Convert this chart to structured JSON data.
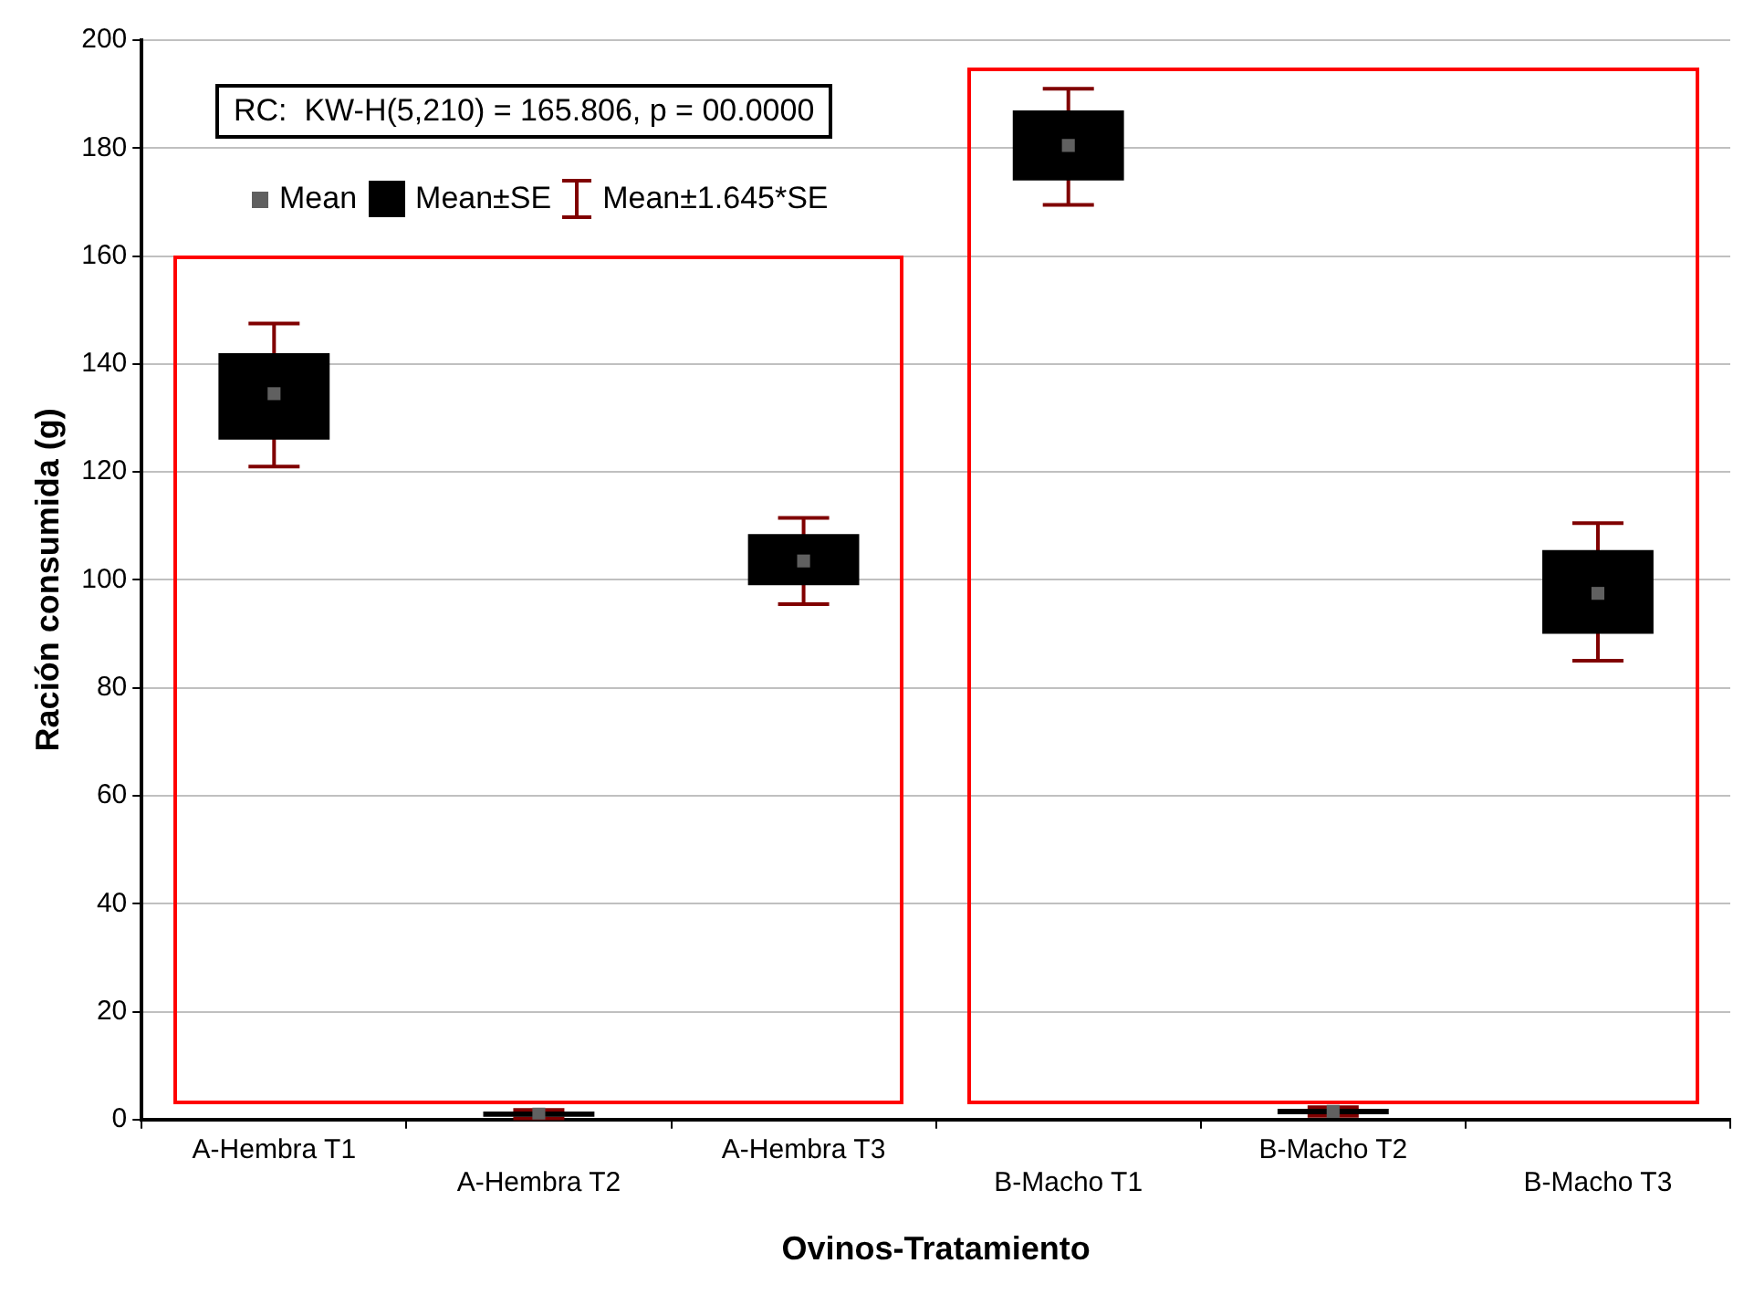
{
  "chart_data": {
    "type": "bar",
    "xlabel": "Ovinos-Tratamiento",
    "ylabel": "Ración consumida (g)",
    "categories": [
      "A-Hembra T1",
      "A-Hembra T2",
      "A-Hembra T3",
      "B-Macho T1",
      "B-Macho T2",
      "B-Macho T3"
    ],
    "series": [
      {
        "name": "Mean±SE",
        "color": "#000000",
        "base": [
          126,
          0.5,
          99,
          174,
          1,
          90
        ],
        "values": [
          16,
          1,
          9.5,
          13,
          1,
          15.5
        ]
      },
      {
        "name": "Mean",
        "type": "scatter",
        "marker": "square",
        "color": "#606060",
        "values": [
          134.5,
          1,
          103.5,
          180.5,
          1.5,
          97.5
        ],
        "errors": [
          [
            121,
            147.5
          ],
          [
            0.2,
            1.8
          ],
          [
            95.5,
            111.5
          ],
          [
            169.5,
            191
          ],
          [
            0.7,
            2.3
          ],
          [
            85,
            110.5
          ]
        ]
      }
    ],
    "ylim": [
      0,
      200
    ],
    "yticks": [
      0,
      20,
      40,
      60,
      80,
      100,
      120,
      140,
      160,
      180,
      200
    ],
    "grid": "y",
    "legend": "top left",
    "annotations": [
      "RC:  KW-H(5,210) = 165.806, p = 00.0000",
      "Mean±1.645*SE"
    ]
  }
}
